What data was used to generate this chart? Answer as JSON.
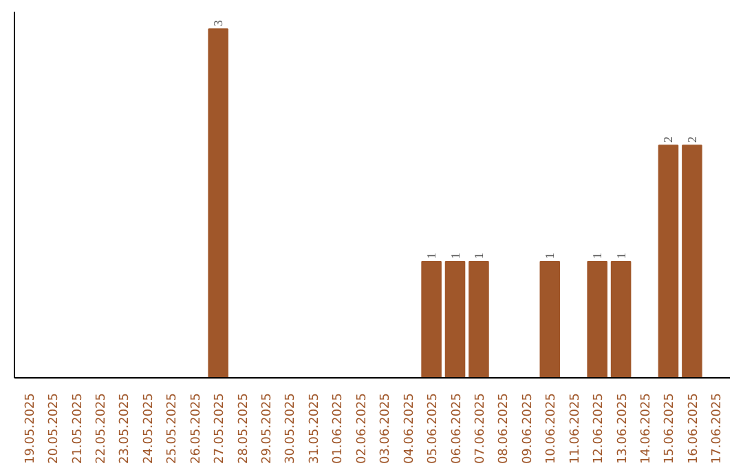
{
  "chart_data": {
    "type": "bar",
    "categories": [
      "19.05.2025",
      "20.05.2025",
      "21.05.2025",
      "22.05.2025",
      "23.05.2025",
      "24.05.2025",
      "25.05.2025",
      "26.05.2025",
      "27.05.2025",
      "28.05.2025",
      "29.05.2025",
      "30.05.2025",
      "31.05.2025",
      "01.06.2025",
      "02.06.2025",
      "03.06.2025",
      "04.06.2025",
      "05.06.2025",
      "06.06.2025",
      "07.06.2025",
      "08.06.2025",
      "09.06.2025",
      "10.06.2025",
      "11.06.2025",
      "12.06.2025",
      "13.06.2025",
      "14.06.2025",
      "15.06.2025",
      "16.06.2025",
      "17.06.2025"
    ],
    "values": [
      0,
      0,
      0,
      0,
      0,
      0,
      0,
      0,
      3,
      0,
      0,
      0,
      0,
      0,
      0,
      0,
      0,
      1,
      1,
      1,
      0,
      0,
      1,
      0,
      1,
      1,
      0,
      2,
      2,
      0
    ],
    "value_labels": [
      null,
      null,
      null,
      null,
      null,
      null,
      null,
      null,
      "3",
      null,
      null,
      null,
      null,
      null,
      null,
      null,
      null,
      "1",
      "1",
      "1",
      null,
      null,
      "1",
      null,
      "1",
      "1",
      null,
      "2",
      "2",
      null
    ],
    "color": "#a0572a",
    "grid": false
  }
}
